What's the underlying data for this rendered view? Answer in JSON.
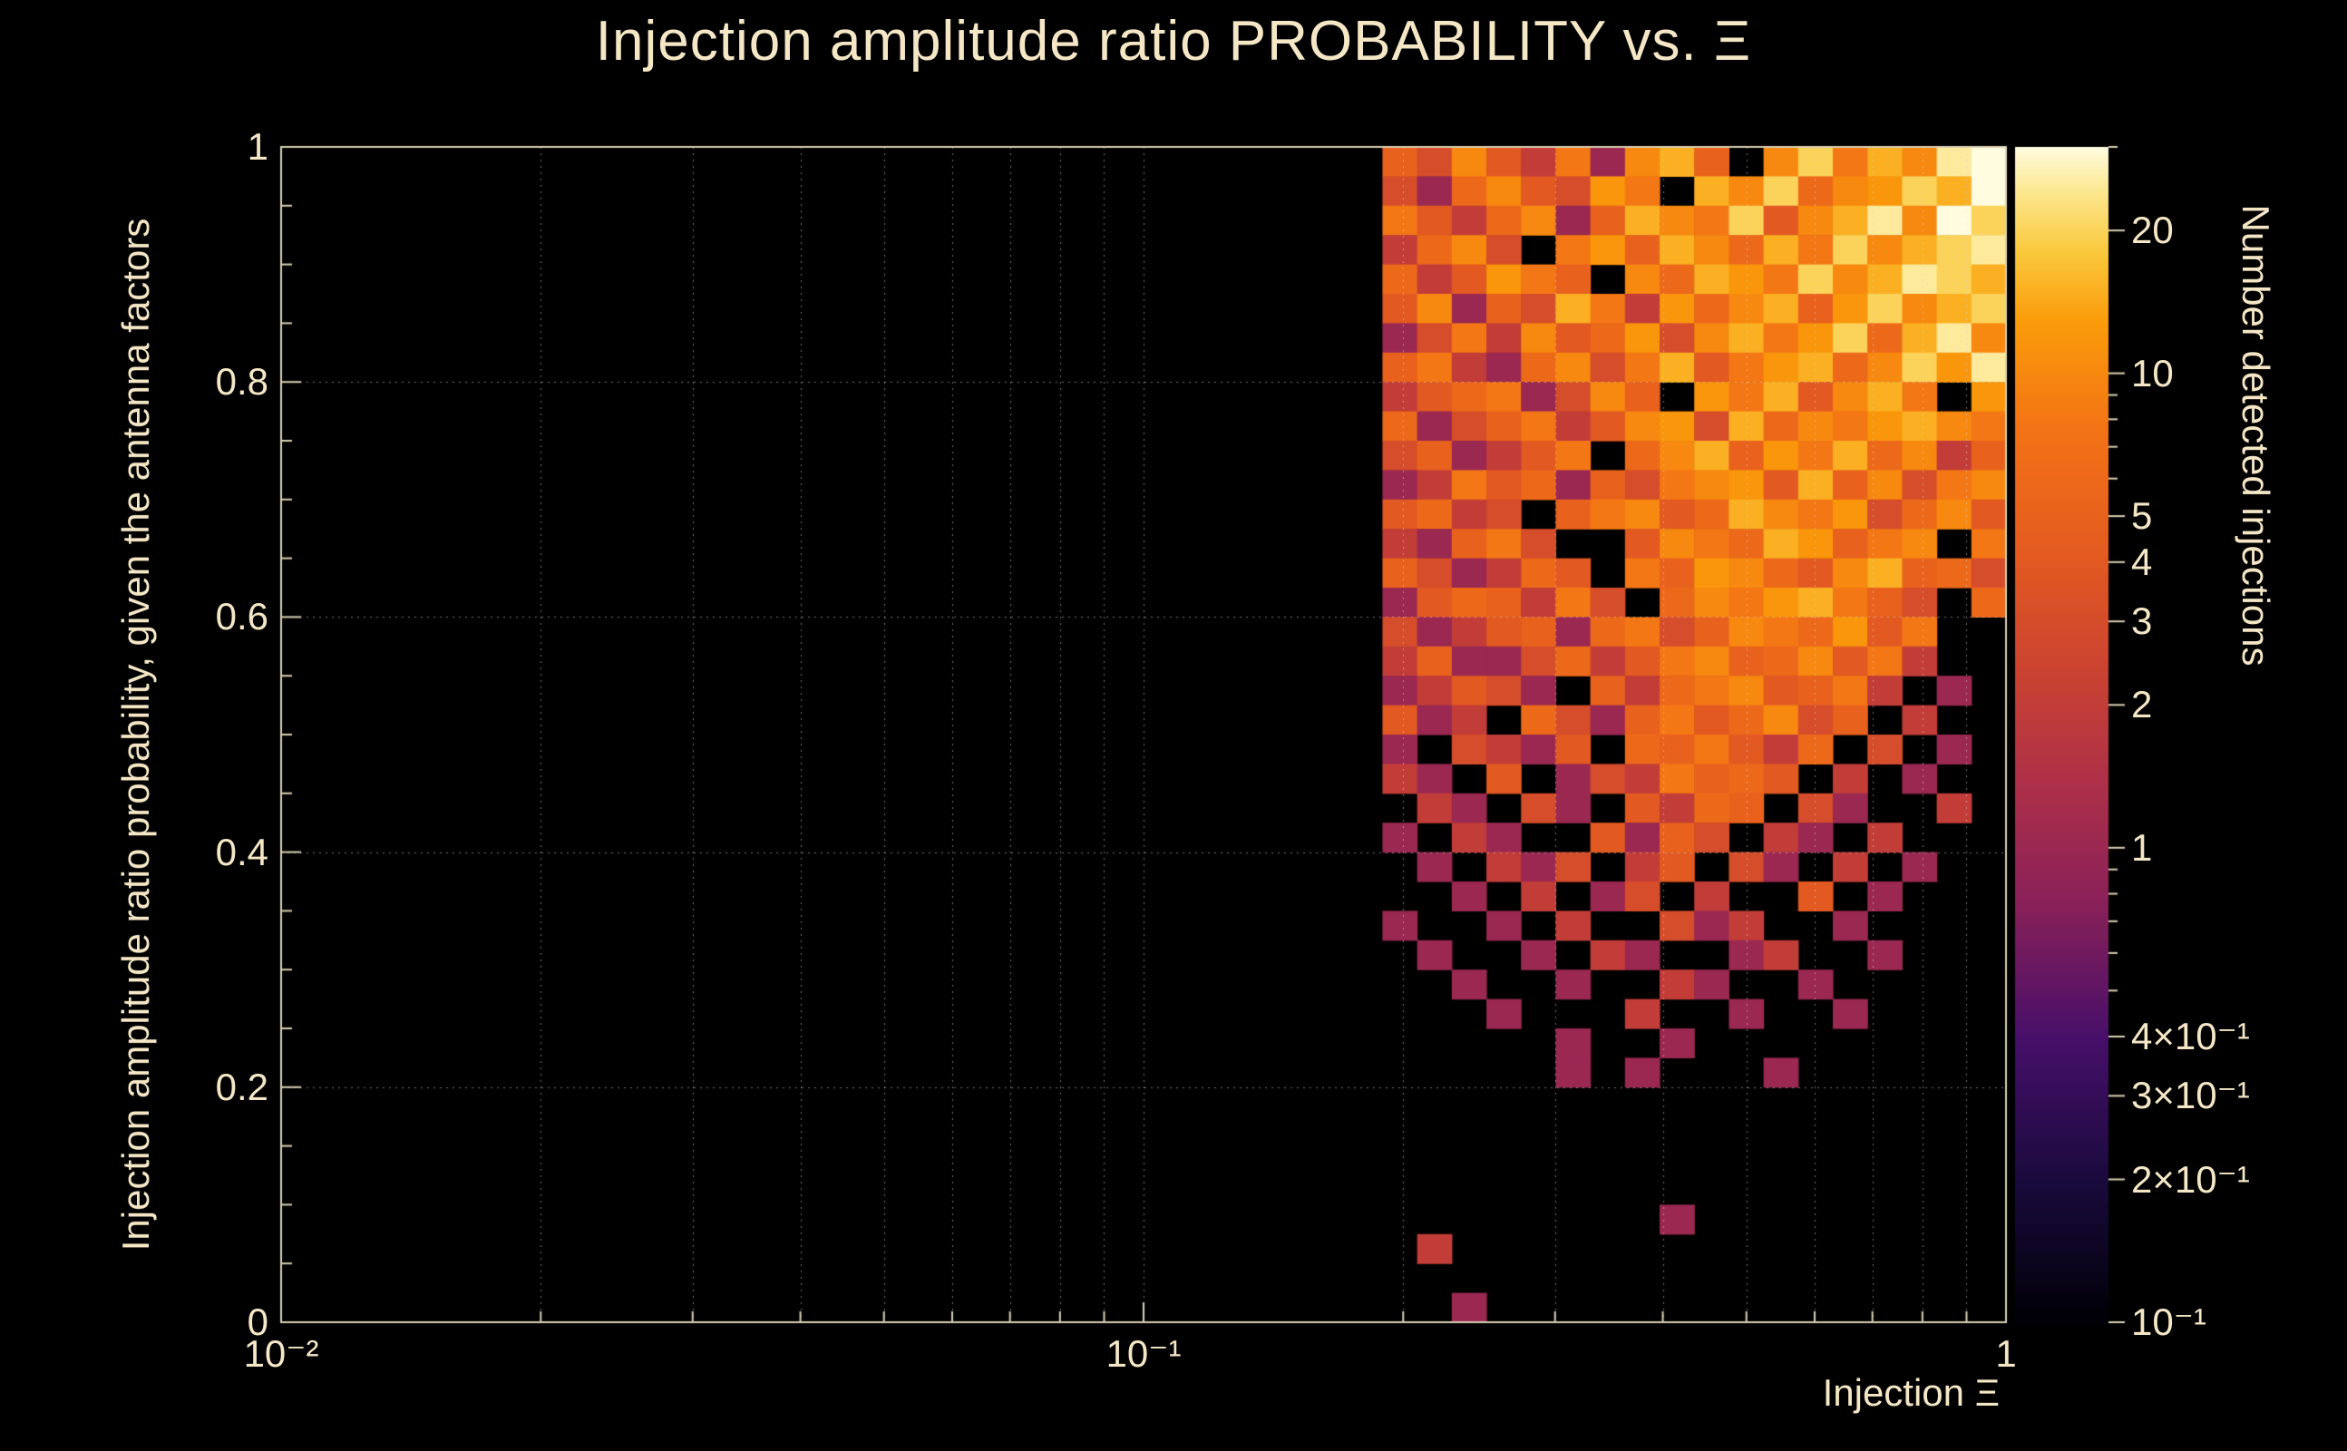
{
  "colors": {
    "background": "#000000",
    "text": "#f5e7c6",
    "axis": "#d9d0b4",
    "grid": "#d2d2d2"
  },
  "palette": {
    "name": "dark-body-radiator",
    "stops": [
      [
        0.0,
        "#000006"
      ],
      [
        0.12,
        "#190a3c"
      ],
      [
        0.24,
        "#460f69"
      ],
      [
        0.36,
        "#8a2158"
      ],
      [
        0.46,
        "#ae3048"
      ],
      [
        0.56,
        "#cc4430"
      ],
      [
        0.66,
        "#e55c20"
      ],
      [
        0.76,
        "#f37316"
      ],
      [
        0.85,
        "#fa9b0a"
      ],
      [
        0.91,
        "#fac83c"
      ],
      [
        0.96,
        "#fce68c"
      ],
      [
        1.0,
        "#fffce0"
      ]
    ]
  },
  "chart_data": {
    "type": "heatmap",
    "title": "Injection amplitude ratio PROBABILITY vs.  Ξ",
    "xlabel": "Injection Ξ",
    "ylabel": "Injection amplitude ratio probability, given the antenna factors",
    "zlabel": "Number detected injections",
    "x_scale": "log",
    "x_range": [
      0.01,
      1
    ],
    "y_scale": "linear",
    "y_range": [
      0,
      1
    ],
    "z_scale": "log",
    "z_range": [
      0.1,
      30
    ],
    "grid": "dotted",
    "x_ticks": [
      {
        "value": 0.01,
        "label": "10⁻²"
      },
      {
        "value": 0.1,
        "label": "10⁻¹"
      },
      {
        "value": 1,
        "label": "1"
      }
    ],
    "y_ticks": [
      {
        "value": 0,
        "label": "0"
      },
      {
        "value": 0.2,
        "label": "0.2"
      },
      {
        "value": 0.4,
        "label": "0.4"
      },
      {
        "value": 0.6,
        "label": "0.6"
      },
      {
        "value": 0.8,
        "label": "0.8"
      },
      {
        "value": 1,
        "label": "1"
      }
    ],
    "z_ticks": [
      {
        "value": 20,
        "label": "20"
      },
      {
        "value": 10,
        "label": "10"
      },
      {
        "value": 5,
        "label": "5"
      },
      {
        "value": 4,
        "label": "4"
      },
      {
        "value": 3,
        "label": "3"
      },
      {
        "value": 2,
        "label": "2"
      },
      {
        "value": 1,
        "label": "1"
      },
      {
        "value": 0.4,
        "label": "4×10⁻¹"
      },
      {
        "value": 0.3,
        "label": "3×10⁻¹"
      },
      {
        "value": 0.2,
        "label": "2×10⁻¹"
      },
      {
        "value": 0.1,
        "label": "10⁻¹"
      }
    ],
    "bins": {
      "x_start_log10": -0.723,
      "x_end_log10": 0,
      "x_count": 18,
      "y_start": 0,
      "y_end": 1,
      "y_count": 40,
      "row_order": "top_to_bottom"
    },
    "values": [
      [
        5,
        3,
        10,
        4,
        2,
        8,
        1,
        10,
        15,
        5,
        0,
        10,
        20,
        8,
        15,
        10,
        25,
        30
      ],
      [
        3,
        1,
        6,
        10,
        4,
        3,
        12,
        8,
        0,
        15,
        10,
        20,
        6,
        10,
        12,
        20,
        15,
        30
      ],
      [
        8,
        4,
        2,
        6,
        10,
        1,
        5,
        15,
        10,
        8,
        20,
        4,
        10,
        15,
        25,
        10,
        30,
        20
      ],
      [
        2,
        6,
        10,
        3,
        0,
        8,
        12,
        5,
        15,
        10,
        6,
        15,
        8,
        20,
        10,
        15,
        20,
        25
      ],
      [
        6,
        2,
        4,
        12,
        8,
        5,
        0,
        10,
        6,
        15,
        12,
        8,
        20,
        10,
        15,
        25,
        20,
        15
      ],
      [
        4,
        10,
        1,
        5,
        3,
        15,
        8,
        2,
        12,
        6,
        10,
        15,
        5,
        12,
        20,
        10,
        15,
        20
      ],
      [
        1,
        3,
        8,
        2,
        10,
        4,
        6,
        12,
        3,
        10,
        15,
        8,
        12,
        20,
        6,
        15,
        25,
        10
      ],
      [
        5,
        8,
        2,
        1,
        6,
        10,
        3,
        8,
        15,
        4,
        8,
        12,
        15,
        6,
        10,
        20,
        12,
        25
      ],
      [
        2,
        4,
        6,
        8,
        1,
        3,
        10,
        5,
        0,
        12,
        8,
        15,
        4,
        10,
        15,
        8,
        0,
        12
      ],
      [
        6,
        1,
        3,
        5,
        8,
        2,
        4,
        10,
        12,
        3,
        15,
        6,
        10,
        8,
        12,
        15,
        10,
        8
      ],
      [
        3,
        5,
        1,
        2,
        4,
        8,
        0,
        6,
        10,
        15,
        5,
        12,
        8,
        15,
        6,
        10,
        2,
        5
      ],
      [
        1,
        2,
        8,
        4,
        6,
        1,
        5,
        3,
        8,
        10,
        12,
        4,
        15,
        5,
        10,
        3,
        8,
        10
      ],
      [
        4,
        6,
        2,
        3,
        0,
        5,
        8,
        10,
        4,
        6,
        15,
        10,
        8,
        12,
        3,
        6,
        10,
        4
      ],
      [
        2,
        1,
        5,
        8,
        3,
        0,
        0,
        4,
        10,
        8,
        6,
        15,
        12,
        5,
        8,
        10,
        0,
        8
      ],
      [
        5,
        3,
        1,
        2,
        6,
        4,
        0,
        8,
        5,
        12,
        10,
        6,
        4,
        10,
        15,
        5,
        6,
        3
      ],
      [
        1,
        4,
        6,
        5,
        2,
        8,
        3,
        0,
        6,
        10,
        8,
        12,
        15,
        8,
        5,
        3,
        0,
        6
      ],
      [
        3,
        1,
        2,
        4,
        5,
        1,
        6,
        8,
        3,
        5,
        10,
        8,
        6,
        12,
        4,
        8,
        0,
        0
      ],
      [
        2,
        5,
        1,
        1,
        3,
        6,
        2,
        4,
        8,
        10,
        5,
        6,
        10,
        4,
        8,
        2,
        0,
        0
      ],
      [
        1,
        2,
        4,
        3,
        1,
        0,
        5,
        2,
        6,
        8,
        10,
        4,
        5,
        8,
        2,
        0,
        1,
        0
      ],
      [
        4,
        1,
        2,
        0,
        6,
        3,
        1,
        5,
        8,
        4,
        6,
        10,
        3,
        5,
        0,
        2,
        0,
        0
      ],
      [
        1,
        0,
        3,
        2,
        1,
        4,
        0,
        6,
        5,
        8,
        4,
        2,
        6,
        0,
        3,
        0,
        1,
        0
      ],
      [
        2,
        1,
        0,
        4,
        0,
        1,
        3,
        2,
        8,
        5,
        6,
        4,
        0,
        2,
        0,
        1,
        0,
        0
      ],
      [
        0,
        2,
        1,
        0,
        3,
        1,
        0,
        4,
        2,
        6,
        5,
        0,
        3,
        1,
        0,
        0,
        2,
        0
      ],
      [
        1,
        0,
        2,
        1,
        0,
        0,
        4,
        1,
        5,
        3,
        0,
        2,
        1,
        0,
        2,
        0,
        0,
        0
      ],
      [
        0,
        1,
        0,
        2,
        1,
        3,
        0,
        2,
        4,
        0,
        3,
        1,
        0,
        2,
        0,
        1,
        0,
        0
      ],
      [
        0,
        0,
        1,
        0,
        2,
        0,
        1,
        3,
        0,
        2,
        0,
        0,
        4,
        0,
        1,
        0,
        0,
        0
      ],
      [
        1,
        0,
        0,
        1,
        0,
        2,
        0,
        0,
        3,
        1,
        2,
        0,
        0,
        1,
        0,
        0,
        0,
        0
      ],
      [
        0,
        1,
        0,
        0,
        1,
        0,
        2,
        1,
        0,
        0,
        1,
        2,
        0,
        0,
        1,
        0,
        0,
        0
      ],
      [
        0,
        0,
        1,
        0,
        0,
        1,
        0,
        0,
        2,
        1,
        0,
        0,
        1,
        0,
        0,
        0,
        0,
        0
      ],
      [
        0,
        0,
        0,
        1,
        0,
        0,
        0,
        2,
        0,
        0,
        1,
        0,
        0,
        1,
        0,
        0,
        0,
        0
      ],
      [
        0,
        0,
        0,
        0,
        0,
        1,
        0,
        0,
        1,
        0,
        0,
        0,
        0,
        0,
        0,
        0,
        0,
        0
      ],
      [
        0,
        0,
        0,
        0,
        0,
        1,
        0,
        1,
        0,
        0,
        0,
        1,
        0,
        0,
        0,
        0,
        0,
        0
      ],
      [
        0,
        0,
        0,
        0,
        0,
        0,
        0,
        0,
        0,
        0,
        0,
        0,
        0,
        0,
        0,
        0,
        0,
        0
      ],
      [
        0,
        0,
        0,
        0,
        0,
        0,
        0,
        0,
        0,
        0,
        0,
        0,
        0,
        0,
        0,
        0,
        0,
        0
      ],
      [
        0,
        0,
        0,
        0,
        0,
        0,
        0,
        0,
        0,
        0,
        0,
        0,
        0,
        0,
        0,
        0,
        0,
        0
      ],
      [
        0,
        0,
        0,
        0,
        0,
        0,
        0,
        0,
        0,
        0,
        0,
        0,
        0,
        0,
        0,
        0,
        0,
        0
      ],
      [
        0,
        0,
        0,
        0,
        0,
        0,
        0,
        0,
        1,
        0,
        0,
        0,
        0,
        0,
        0,
        0,
        0,
        0
      ],
      [
        0,
        2,
        0,
        0,
        0,
        0,
        0,
        0,
        0,
        0,
        0,
        0,
        0,
        0,
        0,
        0,
        0,
        0
      ],
      [
        0,
        0,
        0,
        0,
        0,
        0,
        0,
        0,
        0,
        0,
        0,
        0,
        0,
        0,
        0,
        0,
        0,
        0
      ],
      [
        0,
        0,
        1,
        0,
        0,
        0,
        0,
        0,
        0,
        0,
        0,
        0,
        0,
        0,
        0,
        0,
        0,
        0
      ]
    ]
  }
}
